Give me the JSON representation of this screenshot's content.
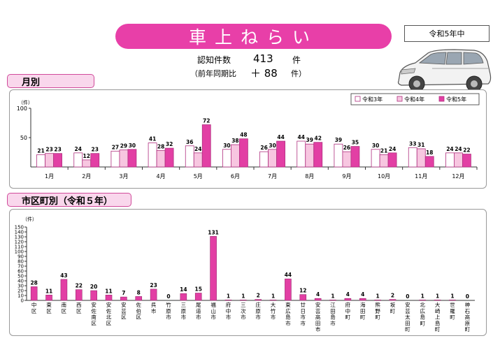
{
  "header": {
    "title": "車上ねらい",
    "period": "令和5年中",
    "count_label": "認知件数",
    "count_value": "413",
    "count_unit": "件",
    "yoy_label": "（前年同期比",
    "yoy_value": "＋ 88",
    "yoy_unit": "件）"
  },
  "monthly_section": {
    "label": "月別"
  },
  "district_section": {
    "label": "市区町別（令和５年）"
  },
  "chart_data": [
    {
      "type": "bar",
      "unit_label": "（件）",
      "ylim": [
        0,
        100
      ],
      "yticks": [
        50,
        100
      ],
      "categories": [
        "1月",
        "2月",
        "3月",
        "4月",
        "5月",
        "6月",
        "7月",
        "8月",
        "9月",
        "10月",
        "11月",
        "12月"
      ],
      "series": [
        {
          "name": "令和3年",
          "color": "#ffffff",
          "values": [
            21,
            24,
            27,
            41,
            36,
            30,
            26,
            44,
            39,
            30,
            33,
            24
          ]
        },
        {
          "name": "令和4年",
          "color": "#f7c6e0",
          "values": [
            23,
            12,
            29,
            28,
            24,
            38,
            30,
            39,
            26,
            21,
            31,
            24
          ]
        },
        {
          "name": "令和5年",
          "color": "#e23fa4",
          "values": [
            23,
            23,
            30,
            32,
            72,
            48,
            44,
            42,
            35,
            24,
            18,
            22
          ]
        }
      ],
      "legend": "top-right",
      "grid": false
    },
    {
      "type": "bar",
      "unit_label": "（件）",
      "ylim": [
        0,
        150
      ],
      "yticks": [
        0,
        10,
        20,
        30,
        40,
        50,
        60,
        70,
        80,
        90,
        100,
        110,
        120,
        130,
        140,
        150
      ],
      "categories": [
        "中区",
        "東区",
        "南区",
        "西区",
        "安佐南区",
        "安佐北区",
        "安芸区",
        "佐伯区",
        "呉市",
        "竹原市",
        "三原市",
        "尾道市",
        "福山市",
        "府中市",
        "三次市",
        "庄原市",
        "大竹市",
        "東広島市",
        "廿日市市",
        "安芸高田市",
        "江田島市",
        "府中町",
        "海田町",
        "熊野町",
        "坂町",
        "安芸太田町",
        "北広島町",
        "大崎上島町",
        "世羅町",
        "神石高原町"
      ],
      "values": [
        28,
        11,
        43,
        22,
        20,
        11,
        7,
        8,
        23,
        0,
        14,
        15,
        131,
        1,
        1,
        2,
        1,
        44,
        12,
        4,
        1,
        4,
        4,
        1,
        2,
        0,
        1,
        1,
        1,
        0
      ],
      "color": "#e23fa4",
      "grid": false
    }
  ]
}
